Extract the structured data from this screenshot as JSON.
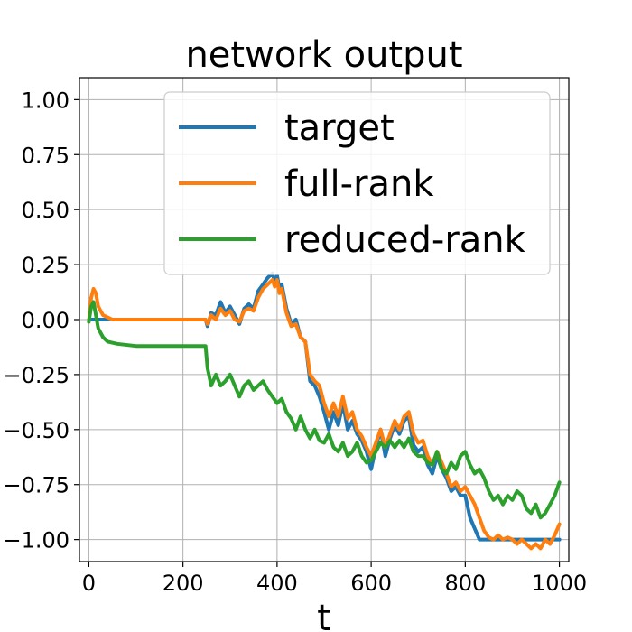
{
  "chart_data": {
    "type": "line",
    "title": "network output",
    "xlabel": "t",
    "ylabel": "",
    "xlim": [
      -20,
      1020
    ],
    "ylim": [
      -1.1,
      1.1
    ],
    "xticks": [
      0,
      200,
      400,
      600,
      800,
      1000
    ],
    "yticks": [
      1.0,
      0.75,
      0.5,
      0.25,
      0.0,
      -0.25,
      -0.5,
      -0.75,
      -1.0
    ],
    "xtick_labels": [
      "0",
      "200",
      "400",
      "600",
      "800",
      "1000"
    ],
    "ytick_labels": [
      "1.00",
      "0.75",
      "0.50",
      "0.25",
      "0.00",
      "−0.25",
      "−0.50",
      "−0.75",
      "−1.00"
    ],
    "grid": true,
    "legend_position": "top-right",
    "series": [
      {
        "name": "target",
        "color": "#1f77b4",
        "x": [
          0,
          50,
          100,
          150,
          200,
          248,
          252,
          260,
          270,
          280,
          290,
          300,
          310,
          320,
          330,
          340,
          350,
          360,
          370,
          380,
          390,
          395,
          400,
          405,
          410,
          420,
          430,
          440,
          450,
          460,
          470,
          480,
          490,
          500,
          510,
          520,
          530,
          540,
          550,
          560,
          570,
          580,
          590,
          600,
          610,
          620,
          630,
          640,
          650,
          660,
          670,
          680,
          690,
          700,
          710,
          720,
          730,
          740,
          750,
          760,
          770,
          780,
          790,
          800,
          810,
          820,
          830,
          840,
          850,
          860,
          870,
          880,
          890,
          900,
          950,
          1000
        ],
        "y": [
          0.0,
          0.0,
          0.0,
          0.0,
          0.0,
          0.0,
          -0.03,
          0.03,
          0.02,
          0.08,
          0.03,
          0.06,
          0.02,
          -0.02,
          0.05,
          0.07,
          0.05,
          0.13,
          0.16,
          0.19,
          0.21,
          0.17,
          0.2,
          0.14,
          0.16,
          0.05,
          -0.02,
          0.0,
          -0.08,
          -0.1,
          -0.28,
          -0.3,
          -0.35,
          -0.42,
          -0.5,
          -0.42,
          -0.48,
          -0.38,
          -0.5,
          -0.46,
          -0.52,
          -0.55,
          -0.6,
          -0.68,
          -0.58,
          -0.5,
          -0.62,
          -0.54,
          -0.48,
          -0.52,
          -0.46,
          -0.44,
          -0.57,
          -0.6,
          -0.58,
          -0.66,
          -0.7,
          -0.62,
          -0.68,
          -0.72,
          -0.78,
          -0.76,
          -0.8,
          -0.8,
          -0.9,
          -0.95,
          -1.0,
          -1.0,
          -1.0,
          -1.0,
          -1.0,
          -1.0,
          -1.0,
          -1.0,
          -1.0,
          -1.0
        ]
      },
      {
        "name": "full-rank",
        "color": "#ff7f0e",
        "x": [
          0,
          5,
          10,
          15,
          20,
          30,
          50,
          100,
          200,
          248,
          252,
          260,
          270,
          280,
          290,
          300,
          310,
          320,
          330,
          340,
          350,
          360,
          370,
          380,
          390,
          395,
          400,
          405,
          410,
          420,
          430,
          440,
          450,
          460,
          470,
          480,
          490,
          500,
          510,
          520,
          530,
          540,
          550,
          560,
          570,
          580,
          590,
          600,
          610,
          620,
          630,
          640,
          650,
          660,
          670,
          680,
          690,
          700,
          710,
          720,
          730,
          740,
          750,
          760,
          770,
          780,
          790,
          800,
          810,
          820,
          830,
          840,
          850,
          860,
          870,
          880,
          890,
          900,
          910,
          920,
          930,
          940,
          950,
          960,
          970,
          980,
          990,
          1000
        ],
        "y": [
          -0.01,
          0.1,
          0.14,
          0.12,
          0.06,
          0.02,
          0.0,
          0.0,
          0.0,
          0.0,
          -0.02,
          0.02,
          0.0,
          0.05,
          0.02,
          0.04,
          0.0,
          -0.01,
          0.04,
          0.05,
          0.04,
          0.1,
          0.14,
          0.16,
          0.18,
          0.15,
          0.18,
          0.12,
          0.14,
          0.03,
          -0.03,
          -0.02,
          -0.08,
          -0.1,
          -0.25,
          -0.28,
          -0.3,
          -0.38,
          -0.44,
          -0.38,
          -0.44,
          -0.35,
          -0.45,
          -0.42,
          -0.5,
          -0.53,
          -0.58,
          -0.62,
          -0.56,
          -0.5,
          -0.58,
          -0.52,
          -0.46,
          -0.5,
          -0.44,
          -0.42,
          -0.52,
          -0.56,
          -0.55,
          -0.62,
          -0.66,
          -0.6,
          -0.65,
          -0.7,
          -0.76,
          -0.74,
          -0.78,
          -0.76,
          -0.8,
          -0.84,
          -0.9,
          -0.96,
          -0.99,
          -1.0,
          -0.98,
          -1.0,
          -0.99,
          -1.0,
          -1.02,
          -1.0,
          -1.02,
          -1.04,
          -1.02,
          -1.04,
          -1.0,
          -1.02,
          -0.98,
          -0.93
        ]
      },
      {
        "name": "reduced-rank",
        "color": "#2ca02c",
        "x": [
          0,
          5,
          10,
          15,
          20,
          30,
          40,
          60,
          100,
          150,
          200,
          248,
          252,
          260,
          270,
          280,
          290,
          300,
          310,
          320,
          330,
          340,
          350,
          360,
          370,
          380,
          390,
          400,
          410,
          420,
          430,
          440,
          450,
          460,
          470,
          480,
          490,
          500,
          510,
          520,
          530,
          540,
          550,
          560,
          570,
          580,
          590,
          600,
          610,
          620,
          630,
          640,
          650,
          660,
          670,
          680,
          690,
          700,
          710,
          720,
          730,
          740,
          750,
          760,
          770,
          780,
          790,
          800,
          810,
          820,
          830,
          840,
          850,
          860,
          870,
          880,
          890,
          900,
          910,
          920,
          930,
          940,
          950,
          960,
          970,
          980,
          990,
          1000
        ],
        "y": [
          -0.01,
          0.06,
          0.08,
          0.02,
          -0.04,
          -0.08,
          -0.1,
          -0.11,
          -0.12,
          -0.12,
          -0.12,
          -0.12,
          -0.22,
          -0.3,
          -0.25,
          -0.3,
          -0.28,
          -0.25,
          -0.3,
          -0.35,
          -0.3,
          -0.28,
          -0.32,
          -0.3,
          -0.28,
          -0.32,
          -0.35,
          -0.38,
          -0.36,
          -0.42,
          -0.45,
          -0.5,
          -0.44,
          -0.5,
          -0.54,
          -0.5,
          -0.55,
          -0.56,
          -0.52,
          -0.58,
          -0.6,
          -0.56,
          -0.62,
          -0.6,
          -0.56,
          -0.62,
          -0.65,
          -0.64,
          -0.6,
          -0.56,
          -0.58,
          -0.55,
          -0.58,
          -0.55,
          -0.58,
          -0.54,
          -0.6,
          -0.62,
          -0.62,
          -0.65,
          -0.66,
          -0.6,
          -0.68,
          -0.7,
          -0.65,
          -0.68,
          -0.62,
          -0.6,
          -0.66,
          -0.7,
          -0.68,
          -0.72,
          -0.78,
          -0.82,
          -0.8,
          -0.84,
          -0.8,
          -0.82,
          -0.78,
          -0.8,
          -0.86,
          -0.88,
          -0.84,
          -0.9,
          -0.88,
          -0.84,
          -0.8,
          -0.74
        ]
      }
    ]
  }
}
